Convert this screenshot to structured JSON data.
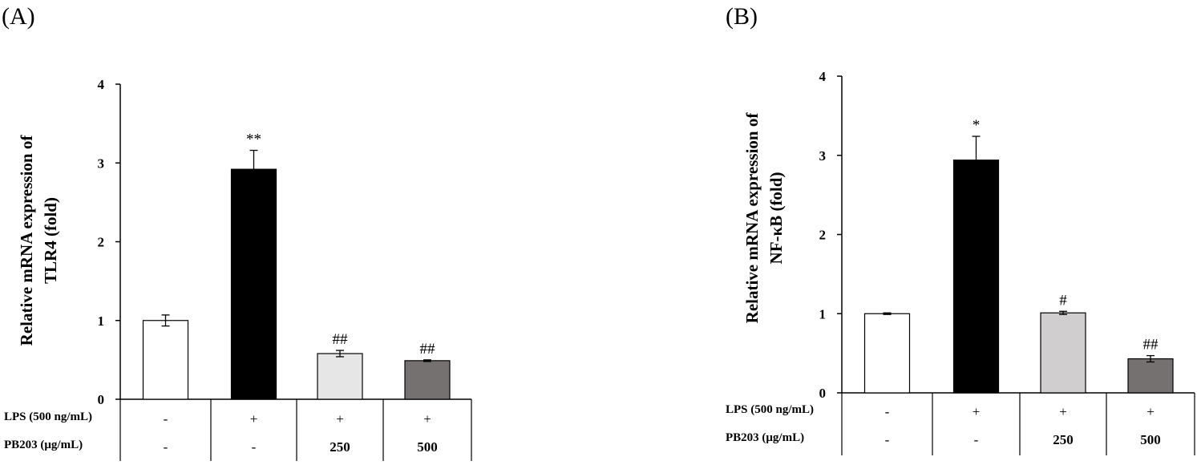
{
  "chart_data": [
    {
      "type": "bar",
      "panel_label": "(A)",
      "ylabel_line1": "Relative mRNA expression of",
      "ylabel_line2": "TLR4 (fold)",
      "ylim": [
        0,
        4
      ],
      "yticks": [
        "0",
        "1",
        "2",
        "3",
        "4"
      ],
      "values": [
        1.0,
        2.92,
        0.58,
        0.49
      ],
      "errors": [
        0.07,
        0.24,
        0.04,
        0.01
      ],
      "colors": [
        "#ffffff",
        "#000000",
        "#e6e6e6",
        "#767171"
      ],
      "significance": [
        "",
        "**",
        "##",
        "##"
      ],
      "table": {
        "rows": [
          {
            "label": "LPS (500 ng/mL)",
            "cells": [
              "-",
              "+",
              "+",
              "+"
            ]
          },
          {
            "label": "PB203 (μg/mL)",
            "cells": [
              "-",
              "-",
              "250",
              "500"
            ]
          }
        ]
      }
    },
    {
      "type": "bar",
      "panel_label": "(B)",
      "ylabel_line1": "Relative mRNA expression of",
      "ylabel_line2": "NF-κB (fold)",
      "ylim": [
        0,
        4
      ],
      "yticks": [
        "0",
        "1",
        "2",
        "3",
        "4"
      ],
      "values": [
        1.0,
        2.94,
        1.01,
        0.43
      ],
      "errors": [
        0.01,
        0.3,
        0.02,
        0.04
      ],
      "colors": [
        "#ffffff",
        "#000000",
        "#d0cece",
        "#767171"
      ],
      "significance": [
        "",
        "*",
        "#",
        "##"
      ],
      "table": {
        "rows": [
          {
            "label": "LPS (500 ng/mL)",
            "cells": [
              "-",
              "+",
              "+",
              "+"
            ]
          },
          {
            "label": "PB203 (μg/mL)",
            "cells": [
              "-",
              "-",
              "250",
              "500"
            ]
          }
        ]
      }
    }
  ]
}
